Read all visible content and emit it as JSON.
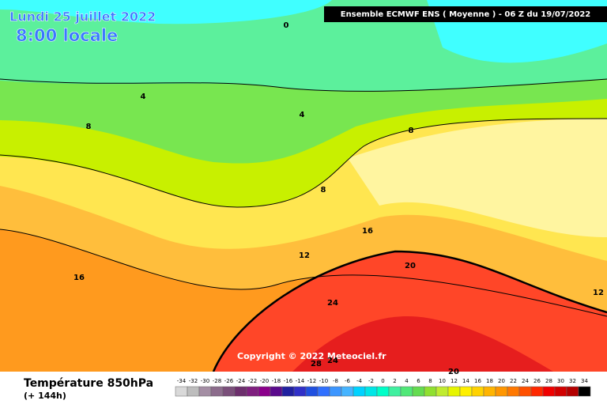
{
  "header": {
    "date": "Lundi 25 juillet 2022",
    "time": "8:00 locale",
    "run": "Ensemble ECMWF ENS  ( Moyenne )  -  06 Z du 19/07/2022"
  },
  "copyright": "Copyright © 2022 Meteociel.fr",
  "contour_labels": [
    0,
    4,
    4,
    8,
    8,
    8,
    12,
    12,
    16,
    16,
    20,
    20,
    24,
    24,
    28
  ],
  "legend": {
    "title": "Température 850hPa",
    "subtitle": "(+ 144h)",
    "scale": [
      -34,
      -32,
      -30,
      -28,
      -26,
      -24,
      -22,
      -20,
      -18,
      -16,
      -14,
      -12,
      -10,
      -8,
      -6,
      -4,
      -2,
      0,
      2,
      4,
      6,
      8,
      10,
      12,
      14,
      16,
      18,
      20,
      22,
      24,
      26,
      28,
      30,
      32,
      34
    ],
    "colors": [
      "#d9d9d9",
      "#bdbdbd",
      "#a48ea4",
      "#8c6c8c",
      "#7a4f7a",
      "#6d2f6d",
      "#7f1f7f",
      "#8b008b",
      "#5a0a8c",
      "#2020a0",
      "#3030c8",
      "#2050e0",
      "#3070ff",
      "#3c96ff",
      "#46b4ff",
      "#00d2ff",
      "#00e6e6",
      "#00ffc8",
      "#40f0a0",
      "#50e878",
      "#64dc50",
      "#90e030",
      "#c0ec30",
      "#e6f500",
      "#fff000",
      "#ffd200",
      "#ffb400",
      "#ff9600",
      "#ff7800",
      "#ff5000",
      "#ff2800",
      "#f00000",
      "#d20000",
      "#b40000",
      "#000000"
    ]
  }
}
